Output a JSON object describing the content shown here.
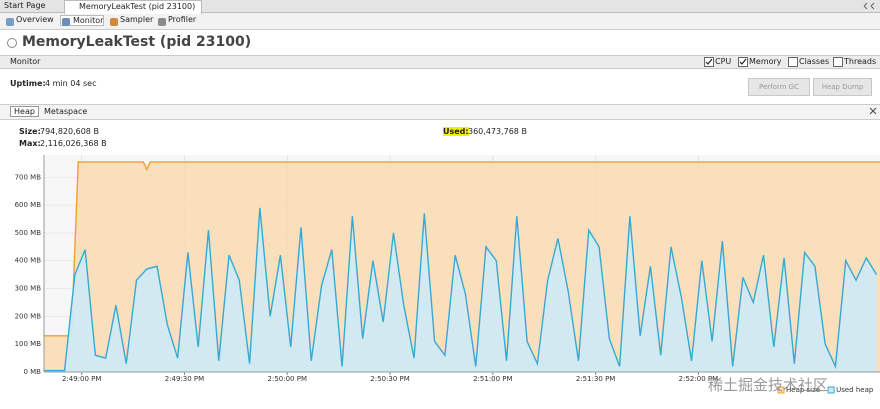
{
  "tabs": [
    "Start Page",
    "MemoryLeakTest (pid 23100)"
  ],
  "toolbar": [
    "Overview",
    "Monitor",
    "Sampler",
    "Profiler"
  ],
  "title": "MemoryLeakTest (pid 23100)",
  "monitor": {
    "label": "Monitor",
    "options": [
      {
        "label": "CPU",
        "checked": true
      },
      {
        "label": "Memory",
        "checked": true
      },
      {
        "label": "Classes",
        "checked": false
      },
      {
        "label": "Threads",
        "checked": false
      }
    ]
  },
  "uptime": {
    "label": "Uptime:",
    "value": "4 min 04 sec"
  },
  "buttons": [
    "Perform GC",
    "Heap Dump"
  ],
  "memory_tabs": [
    "Heap",
    "Metaspace"
  ],
  "stats": {
    "size": {
      "label": "Size:",
      "value": "794,820,608 B"
    },
    "used": {
      "label": "Used:",
      "value": "360,473,768 B"
    },
    "max": {
      "label": "Max:",
      "value": "2,116,026,368 B"
    }
  },
  "chart_data": {
    "type": "area",
    "xlim": [
      53329,
      53573
    ],
    "xticks": [
      {
        "value": 53340,
        "label": "2:49:00 PM"
      },
      {
        "value": 53370,
        "label": "2:49:30 PM"
      },
      {
        "value": 53400,
        "label": "2:50:00 PM"
      },
      {
        "value": 53430,
        "label": "2:50:30 PM"
      },
      {
        "value": 53460,
        "label": "2:51:00 PM"
      },
      {
        "value": 53490,
        "label": "2:51:30 PM"
      },
      {
        "value": 53520,
        "label": "2:52:00 PM"
      }
    ],
    "ylim": [
      0,
      780
    ],
    "yticks": [
      {
        "value": 0,
        "label": "0 MB"
      },
      {
        "value": 100,
        "label": "100 MB"
      },
      {
        "value": 200,
        "label": "200 MB"
      },
      {
        "value": 300,
        "label": "300 MB"
      },
      {
        "value": 400,
        "label": "400 MB"
      },
      {
        "value": 500,
        "label": "500 MB"
      },
      {
        "value": 600,
        "label": "600 MB"
      },
      {
        "value": 700,
        "label": "700 MB"
      }
    ],
    "grid": true,
    "legend": "bottom-right",
    "series": [
      {
        "name": "Heap size",
        "color": "#f0a030",
        "fill": "#f9dcb5",
        "x": [
          53329,
          53337,
          53339,
          53358,
          53359,
          53360,
          53573
        ],
        "values": [
          130,
          130,
          755,
          755,
          728,
          755,
          755
        ]
      },
      {
        "name": "Used heap",
        "color": "#36a9d3",
        "fill": "#cdeaf7",
        "x": [
          53329,
          53332,
          53335,
          53338,
          53341,
          53344,
          53347,
          53350,
          53353,
          53356,
          53359,
          53362,
          53365,
          53368,
          53371,
          53374,
          53377,
          53380,
          53383,
          53386,
          53389,
          53392,
          53395,
          53398,
          53401,
          53404,
          53407,
          53410,
          53413,
          53416,
          53419,
          53422,
          53425,
          53428,
          53431,
          53434,
          53437,
          53440,
          53443,
          53446,
          53449,
          53452,
          53455,
          53458,
          53461,
          53464,
          53467,
          53470,
          53473,
          53476,
          53479,
          53482,
          53485,
          53488,
          53491,
          53494,
          53497,
          53500,
          53503,
          53506,
          53509,
          53512,
          53515,
          53518,
          53521,
          53524,
          53527,
          53530,
          53533,
          53536,
          53539,
          53542,
          53545,
          53548,
          53551,
          53554,
          53557,
          53560,
          53563,
          53566,
          53569,
          53572
        ],
        "values": [
          5,
          5,
          5,
          350,
          440,
          60,
          50,
          240,
          30,
          330,
          370,
          380,
          170,
          50,
          430,
          90,
          510,
          40,
          420,
          330,
          30,
          590,
          200,
          420,
          90,
          520,
          40,
          310,
          440,
          20,
          560,
          120,
          400,
          180,
          500,
          240,
          50,
          570,
          110,
          60,
          420,
          280,
          20,
          450,
          400,
          40,
          560,
          110,
          30,
          330,
          480,
          290,
          40,
          510,
          450,
          120,
          20,
          560,
          130,
          380,
          60,
          450,
          270,
          40,
          400,
          110,
          470,
          20,
          340,
          250,
          420,
          90,
          410,
          30,
          430,
          380,
          100,
          20,
          400,
          330,
          410,
          350
        ]
      }
    ]
  },
  "watermark": "稀土掘金技术社区"
}
